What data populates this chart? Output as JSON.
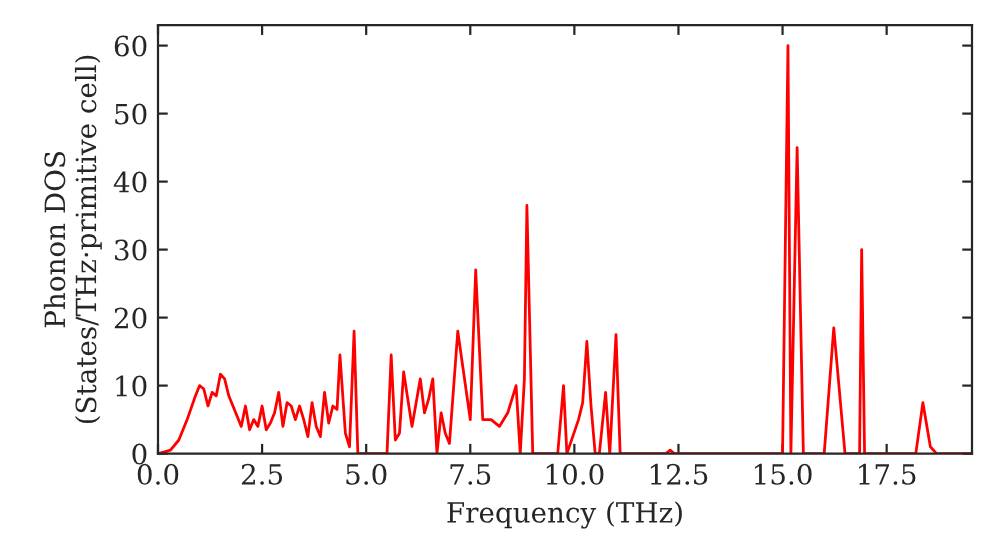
{
  "chart_data": {
    "type": "line",
    "xlabel": "Frequency (THz)",
    "ylabel": "Phonon DOS\n(States/THz·primitive cell)",
    "series": [
      {
        "color": "#ff0000",
        "x": [
          0,
          0.3,
          0.5,
          0.7,
          0.9,
          1.0,
          1.1,
          1.2,
          1.3,
          1.4,
          1.5,
          1.6,
          1.7,
          1.8,
          1.9,
          2.0,
          2.1,
          2.2,
          2.3,
          2.4,
          2.5,
          2.6,
          2.7,
          2.8,
          2.9,
          3.0,
          3.1,
          3.2,
          3.3,
          3.4,
          3.5,
          3.6,
          3.7,
          3.8,
          3.9,
          4.0,
          4.1,
          4.2,
          4.3,
          4.37,
          4.5,
          4.6,
          4.71,
          4.8,
          5.5,
          5.6,
          5.7,
          5.8,
          5.9,
          6.0,
          6.1,
          6.3,
          6.4,
          6.5,
          6.6,
          6.7,
          6.8,
          6.9,
          7.0,
          7.2,
          7.5,
          7.63,
          7.8,
          8.0,
          8.2,
          8.4,
          8.6,
          8.7,
          8.8,
          8.86,
          9.0,
          9.6,
          9.74,
          9.82,
          10.1,
          10.2,
          10.3,
          10.4,
          10.5,
          10.6,
          10.75,
          10.85,
          11.0,
          11.1,
          12.2,
          12.3,
          12.4,
          15.0,
          15.13,
          15.2,
          15.35,
          15.5,
          16.0,
          16.23,
          16.5,
          16.85,
          16.9,
          16.97,
          18.2,
          18.37,
          18.55,
          18.7,
          19.55
        ],
        "values": [
          0,
          0.5,
          2,
          5,
          8.5,
          10,
          9.5,
          7,
          9,
          8.5,
          11.7,
          11,
          8.5,
          7,
          5.5,
          4,
          7,
          3.5,
          5,
          4,
          7,
          3.5,
          4.5,
          6,
          9,
          4,
          7.5,
          7,
          5,
          7,
          5,
          2.5,
          7.5,
          4,
          2.5,
          9,
          4.5,
          7,
          6.5,
          14.5,
          3,
          1,
          18,
          0,
          0,
          14.5,
          2,
          3,
          12,
          8,
          4,
          11,
          6,
          8,
          11,
          0,
          6,
          3,
          1.5,
          18,
          5,
          27,
          5,
          5,
          4,
          6,
          10,
          0,
          11,
          36.5,
          0,
          0,
          10,
          0,
          5,
          7.5,
          16.5,
          7,
          0,
          0,
          9,
          0,
          17.5,
          0,
          0,
          0.5,
          0,
          0,
          60,
          0,
          45,
          0,
          0,
          18.5,
          0,
          0,
          30,
          0,
          0,
          7.5,
          1,
          0,
          0
        ]
      }
    ],
    "xlim": [
      0,
      19.55
    ],
    "ylim": [
      0,
      63
    ],
    "xticks": [
      {
        "value": 0,
        "label": "0.0"
      },
      {
        "value": 2.5,
        "label": "2.5"
      },
      {
        "value": 5,
        "label": "5.0"
      },
      {
        "value": 7.5,
        "label": "7.5"
      },
      {
        "value": 10,
        "label": "10.0"
      },
      {
        "value": 12.5,
        "label": "12.5"
      },
      {
        "value": 15,
        "label": "15.0"
      },
      {
        "value": 17.5,
        "label": "17.5"
      }
    ],
    "yticks": [
      0,
      10,
      20,
      30,
      40,
      50,
      60
    ],
    "grid": false,
    "legend": false
  }
}
